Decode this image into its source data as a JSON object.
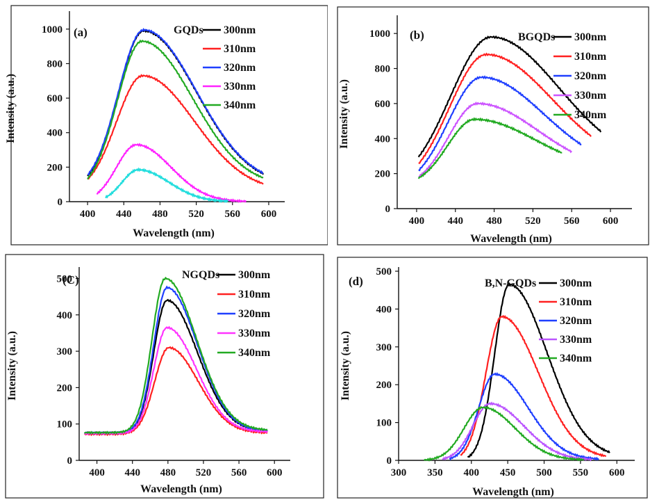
{
  "chart_data": [
    {
      "type": "line",
      "panel_label": "(a)",
      "legend_title": "GQDs",
      "xlabel": "Wavelength (nm)",
      "ylabel": "Intensity (a.u.)",
      "xlim": [
        380,
        610
      ],
      "ylim": [
        0,
        1080
      ],
      "xticks": [
        400,
        440,
        480,
        520,
        560,
        600
      ],
      "yticks": [
        0,
        200,
        400,
        600,
        800,
        1000
      ],
      "series": [
        {
          "name": "300nm",
          "color": "#000000",
          "peak_x": 462,
          "peak_y": 990,
          "x_start": 400,
          "x_end": 594,
          "y_start": 70,
          "y_end": 95,
          "wl": 28,
          "wr": 58
        },
        {
          "name": "310nm",
          "color": "#ff2020",
          "peak_x": 461,
          "peak_y": 730,
          "x_start": 400,
          "x_end": 594,
          "y_start": 55,
          "y_end": 60,
          "wl": 29,
          "wr": 57
        },
        {
          "name": "320nm",
          "color": "#1f3fff",
          "peak_x": 462,
          "peak_y": 995,
          "x_start": 400,
          "x_end": 594,
          "y_start": 75,
          "y_end": 98,
          "wl": 28,
          "wr": 58
        },
        {
          "name": "330nm",
          "color": "#ff22ff",
          "peak_x": 454,
          "peak_y": 330,
          "x_start": 410,
          "x_end": 575,
          "y_start": 0,
          "y_end": 0,
          "wl": 22,
          "wr": 38
        },
        {
          "name": "340nm",
          "color": "#22aa22",
          "peak_x": 460,
          "peak_y": 930,
          "x_start": 400,
          "x_end": 594,
          "y_start": 60,
          "y_end": 90,
          "wl": 27,
          "wr": 56
        },
        {
          "name": "",
          "color": "#22dddd",
          "peak_x": 456,
          "peak_y": 185,
          "x_start": 420,
          "x_end": 555,
          "y_start": 0,
          "y_end": 0,
          "wl": 18,
          "wr": 34
        }
      ]
    },
    {
      "type": "line",
      "panel_label": "(b)",
      "legend_title": "BGQDs",
      "xlabel": "Wavelength (nm)",
      "ylabel": "Intensity (a.u.)",
      "xlim": [
        380,
        615
      ],
      "ylim": [
        0,
        1080
      ],
      "xticks": [
        400,
        440,
        480,
        520,
        560,
        600
      ],
      "yticks": [
        0,
        200,
        400,
        600,
        800,
        1000
      ],
      "series": [
        {
          "name": "300nm",
          "color": "#000000",
          "peak_x": 477,
          "peak_y": 980,
          "x_start": 402,
          "x_end": 590,
          "y_start": 120,
          "y_end": 240,
          "wl": 42,
          "wr": 70
        },
        {
          "name": "310nm",
          "color": "#ff2020",
          "peak_x": 472,
          "peak_y": 880,
          "x_start": 402,
          "x_end": 580,
          "y_start": 115,
          "y_end": 230,
          "wl": 38,
          "wr": 68
        },
        {
          "name": "320nm",
          "color": "#1f3fff",
          "peak_x": 467,
          "peak_y": 750,
          "x_start": 402,
          "x_end": 570,
          "y_start": 115,
          "y_end": 220,
          "wl": 34,
          "wr": 64
        },
        {
          "name": "330nm",
          "color": "#cc55ff",
          "peak_x": 463,
          "peak_y": 600,
          "x_start": 402,
          "x_end": 560,
          "y_start": 120,
          "y_end": 210,
          "wl": 30,
          "wr": 62
        },
        {
          "name": "340nm",
          "color": "#22aa22",
          "peak_x": 460,
          "peak_y": 510,
          "x_start": 402,
          "x_end": 550,
          "y_start": 130,
          "y_end": 215,
          "wl": 28,
          "wr": 62
        }
      ]
    },
    {
      "type": "line",
      "panel_label": "(C)",
      "legend_title": "NGQDs",
      "xlabel": "Wavelength (nm)",
      "ylabel": "Intensity (a.u.)",
      "xlim": [
        380,
        610
      ],
      "ylim": [
        0,
        520
      ],
      "xticks": [
        400,
        440,
        480,
        520,
        560,
        600
      ],
      "yticks": [
        0,
        100,
        200,
        300,
        400,
        500
      ],
      "series": [
        {
          "name": "300nm",
          "color": "#000000",
          "peak_x": 479,
          "peak_y": 440,
          "x_start": 386,
          "x_end": 592,
          "y_start": 75,
          "y_end": 80,
          "wl": 15,
          "wr": 34
        },
        {
          "name": "310nm",
          "color": "#ff2020",
          "peak_x": 481,
          "peak_y": 310,
          "x_start": 386,
          "x_end": 592,
          "y_start": 72,
          "y_end": 75,
          "wl": 16,
          "wr": 33
        },
        {
          "name": "320nm",
          "color": "#1f3fff",
          "peak_x": 479,
          "peak_y": 475,
          "x_start": 386,
          "x_end": 592,
          "y_start": 75,
          "y_end": 80,
          "wl": 15,
          "wr": 34
        },
        {
          "name": "330nm",
          "color": "#ff33ff",
          "peak_x": 479,
          "peak_y": 365,
          "x_start": 386,
          "x_end": 592,
          "y_start": 74,
          "y_end": 78,
          "wl": 15,
          "wr": 33
        },
        {
          "name": "340nm",
          "color": "#22aa22",
          "peak_x": 477,
          "peak_y": 500,
          "x_start": 386,
          "x_end": 592,
          "y_start": 76,
          "y_end": 82,
          "wl": 15,
          "wr": 35
        }
      ]
    },
    {
      "type": "line",
      "panel_label": "(d)",
      "legend_title": "B,N-GQDs",
      "xlabel": "Wavelength (nm)",
      "ylabel": "Intensity (a.u.)",
      "xlim": [
        300,
        615
      ],
      "ylim": [
        0,
        500
      ],
      "xticks": [
        300,
        350,
        400,
        450,
        500,
        550,
        600
      ],
      "yticks": [
        0,
        100,
        200,
        300,
        400,
        500
      ],
      "series": [
        {
          "name": "300nm",
          "color": "#000000",
          "peak_x": 452,
          "peak_y": 465,
          "x_start": 395,
          "x_end": 590,
          "y_start": 0,
          "y_end": 8,
          "wl": 20,
          "wr": 52
        },
        {
          "name": "310nm",
          "color": "#ff2020",
          "peak_x": 442,
          "peak_y": 380,
          "x_start": 385,
          "x_end": 585,
          "y_start": 0,
          "y_end": 5,
          "wl": 22,
          "wr": 50
        },
        {
          "name": "320nm",
          "color": "#1f3fff",
          "peak_x": 432,
          "peak_y": 228,
          "x_start": 370,
          "x_end": 575,
          "y_start": 0,
          "y_end": 2,
          "wl": 22,
          "wr": 46
        },
        {
          "name": "330nm",
          "color": "#bb55ff",
          "peak_x": 426,
          "peak_y": 150,
          "x_start": 360,
          "x_end": 565,
          "y_start": 0,
          "y_end": 1,
          "wl": 24,
          "wr": 46
        },
        {
          "name": "340nm",
          "color": "#22aa22",
          "peak_x": 416,
          "peak_y": 140,
          "x_start": 335,
          "x_end": 555,
          "y_start": 0,
          "y_end": 1,
          "wl": 26,
          "wr": 44
        }
      ]
    }
  ]
}
